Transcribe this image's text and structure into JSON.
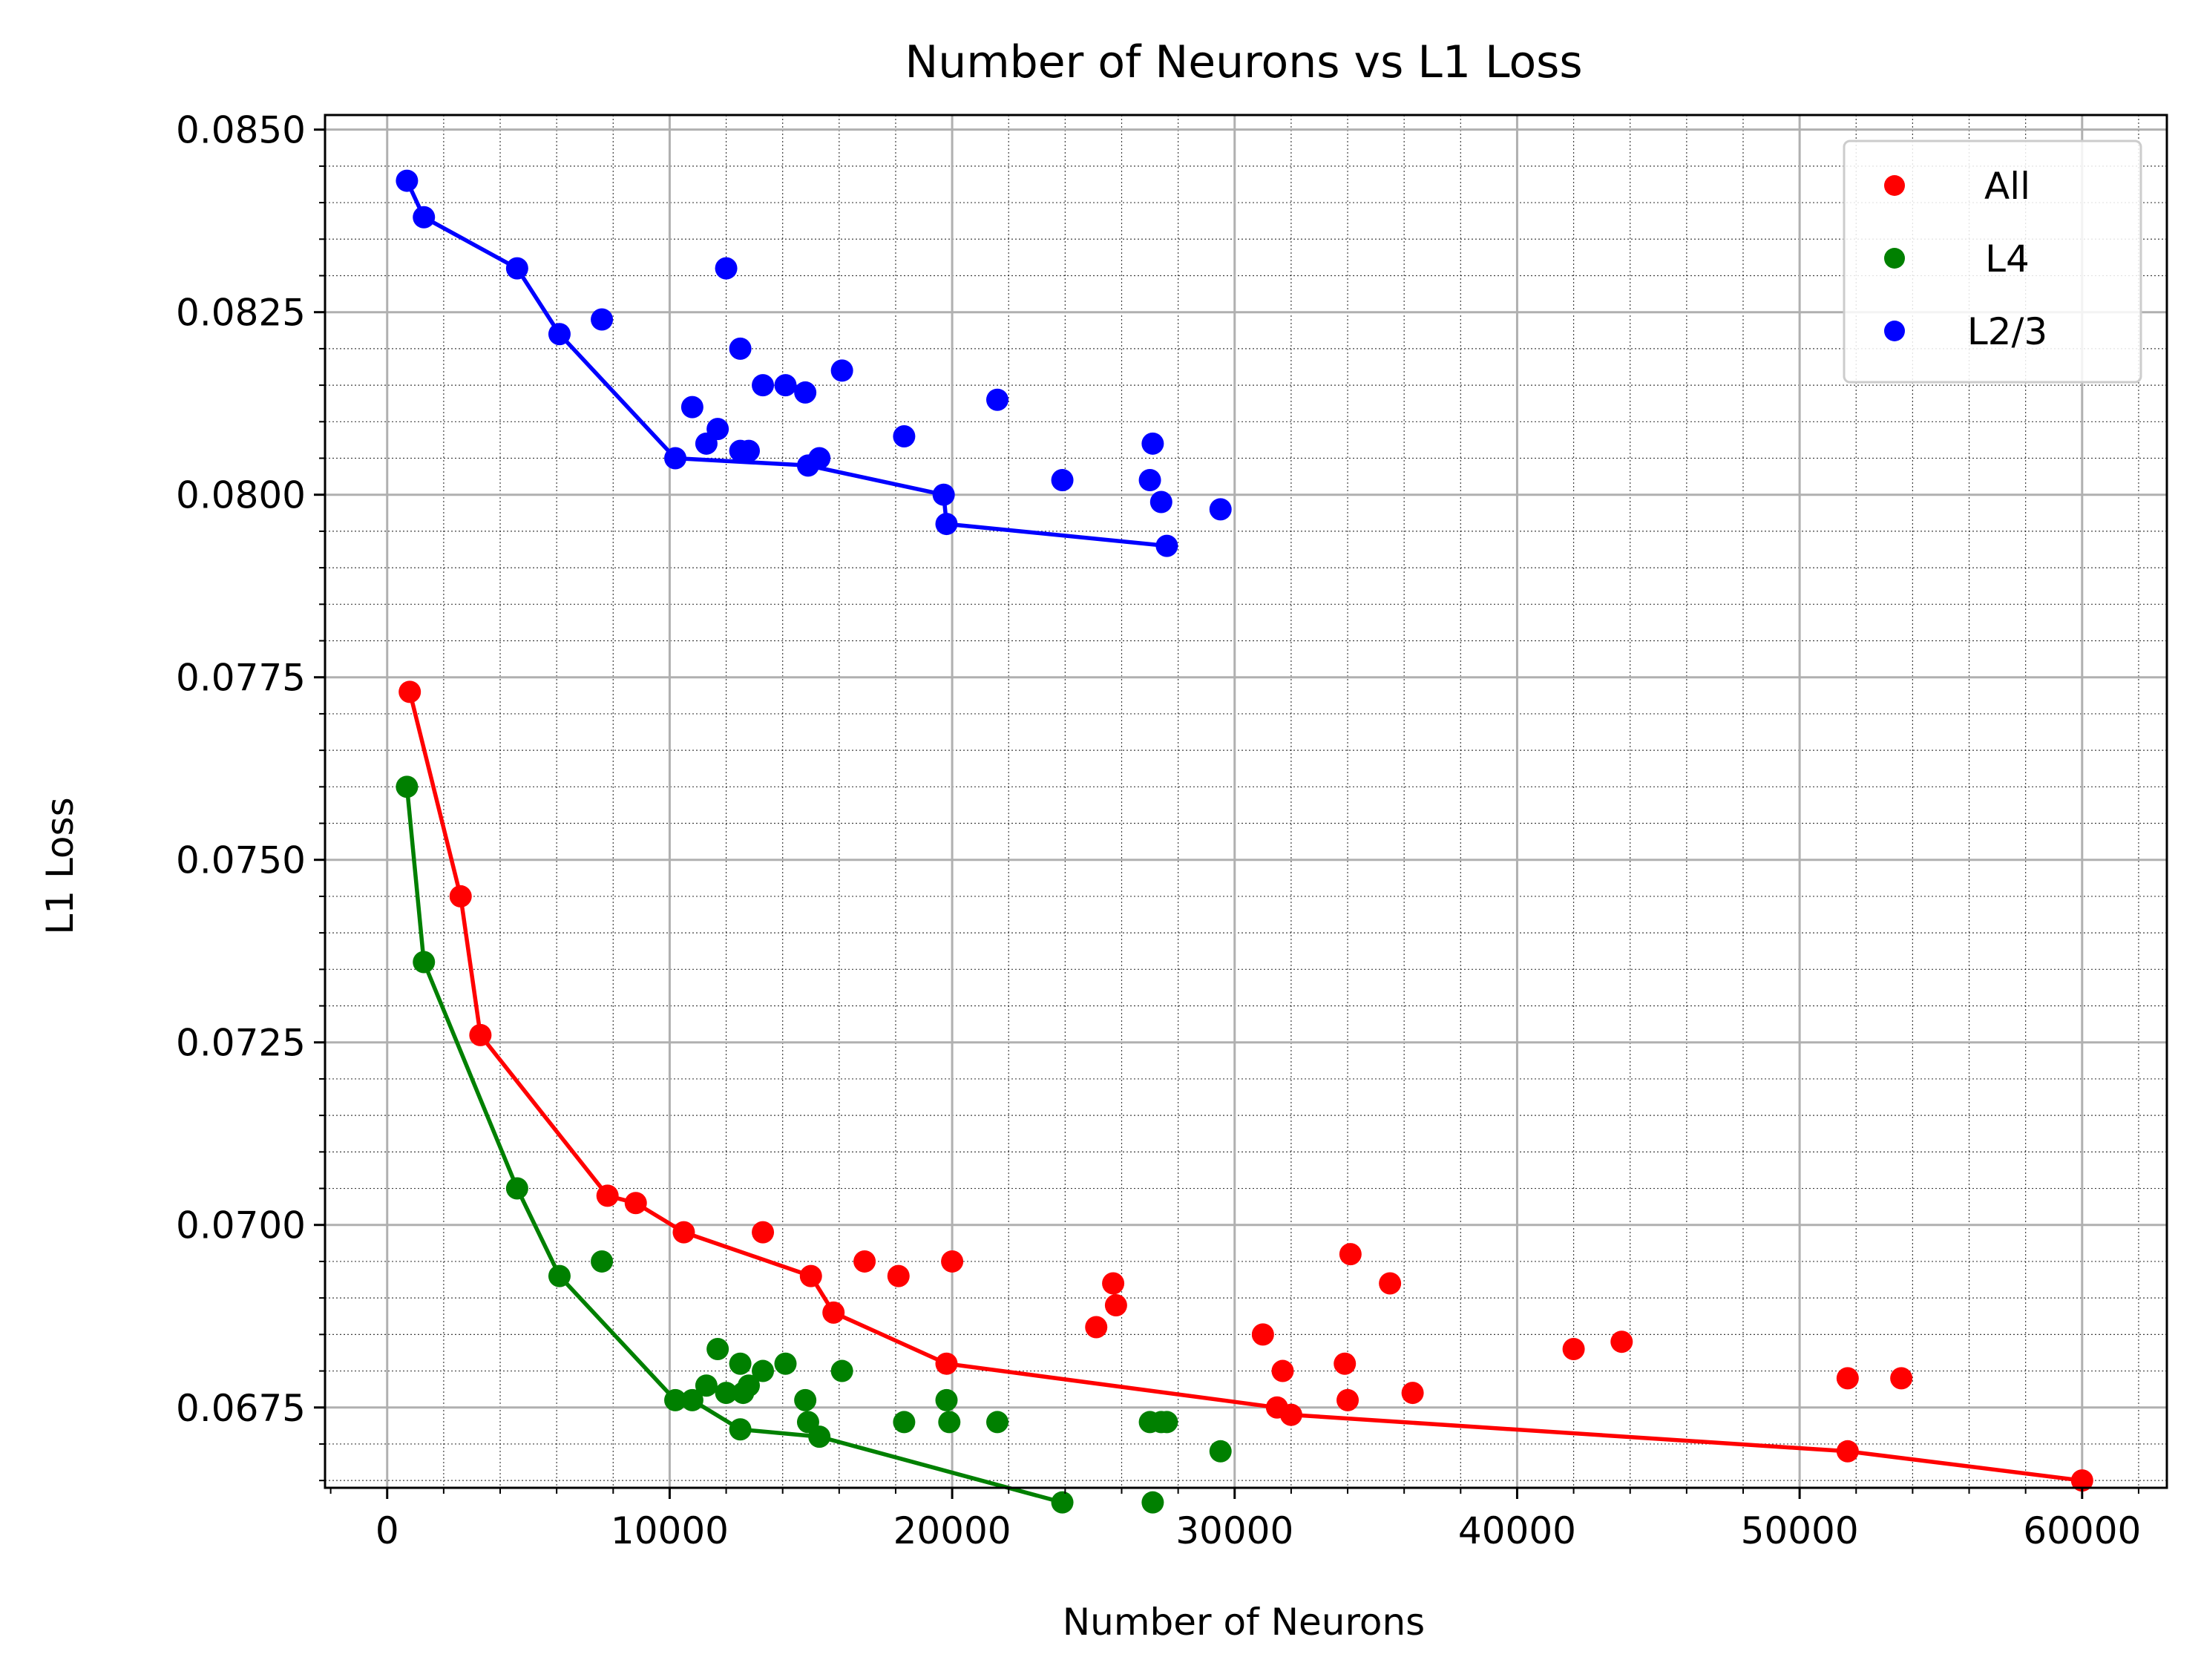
{
  "chart_data": {
    "type": "scatter",
    "title": "Number of Neurons vs L1 Loss",
    "xlabel": "Number of Neurons",
    "ylabel": "L1 Loss",
    "xlim": [
      -2200,
      63000
    ],
    "ylim": [
      0.0664,
      0.0852
    ],
    "xticks": [
      0,
      10000,
      20000,
      30000,
      40000,
      50000,
      60000
    ],
    "xtick_labels": [
      "0",
      "10000",
      "20000",
      "30000",
      "40000",
      "50000",
      "60000"
    ],
    "yticks": [
      0.0675,
      0.07,
      0.0725,
      0.075,
      0.0775,
      0.08,
      0.0825,
      0.085
    ],
    "ytick_labels": [
      "0.0675",
      "0.0700",
      "0.0725",
      "0.0750",
      "0.0775",
      "0.0800",
      "0.0825",
      "0.0850"
    ],
    "grid": true,
    "minor_grid": true,
    "legend_position": "top-right",
    "series": [
      {
        "name": "All",
        "color": "#ff0000",
        "points": [
          [
            800,
            0.0773
          ],
          [
            2600,
            0.0745
          ],
          [
            3300,
            0.0726
          ],
          [
            7800,
            0.0704
          ],
          [
            8800,
            0.0703
          ],
          [
            10500,
            0.0699
          ],
          [
            13300,
            0.0699
          ],
          [
            15000,
            0.0693
          ],
          [
            15800,
            0.0688
          ],
          [
            16900,
            0.0695
          ],
          [
            18100,
            0.0693
          ],
          [
            19800,
            0.0681
          ],
          [
            20000,
            0.0695
          ],
          [
            25100,
            0.0686
          ],
          [
            25700,
            0.0692
          ],
          [
            25800,
            0.0689
          ],
          [
            31000,
            0.0685
          ],
          [
            31500,
            0.0675
          ],
          [
            31700,
            0.068
          ],
          [
            32000,
            0.0674
          ],
          [
            33900,
            0.0681
          ],
          [
            34000,
            0.0676
          ],
          [
            34100,
            0.0696
          ],
          [
            35500,
            0.0692
          ],
          [
            36300,
            0.0677
          ],
          [
            42000,
            0.0683
          ],
          [
            43700,
            0.0684
          ],
          [
            51700,
            0.0679
          ],
          [
            51700,
            0.0669
          ],
          [
            53600,
            0.0679
          ],
          [
            60000,
            0.0665
          ]
        ],
        "frontier": [
          [
            800,
            0.0773
          ],
          [
            2600,
            0.0745
          ],
          [
            3300,
            0.0726
          ],
          [
            7800,
            0.0704
          ],
          [
            8800,
            0.0703
          ],
          [
            10500,
            0.0699
          ],
          [
            15000,
            0.0693
          ],
          [
            15800,
            0.0688
          ],
          [
            19800,
            0.0681
          ],
          [
            31500,
            0.0675
          ],
          [
            32000,
            0.0674
          ],
          [
            51700,
            0.0669
          ],
          [
            60000,
            0.0665
          ]
        ]
      },
      {
        "name": "L4",
        "color": "#008000",
        "points": [
          [
            700,
            0.076
          ],
          [
            1300,
            0.0736
          ],
          [
            4600,
            0.0705
          ],
          [
            6100,
            0.0693
          ],
          [
            7600,
            0.0695
          ],
          [
            10200,
            0.0676
          ],
          [
            10800,
            0.0676
          ],
          [
            11300,
            0.0678
          ],
          [
            11700,
            0.0683
          ],
          [
            12000,
            0.0677
          ],
          [
            12500,
            0.0681
          ],
          [
            12500,
            0.0672
          ],
          [
            12600,
            0.0677
          ],
          [
            12800,
            0.0678
          ],
          [
            13300,
            0.068
          ],
          [
            14100,
            0.0681
          ],
          [
            14800,
            0.0676
          ],
          [
            14900,
            0.0673
          ],
          [
            15300,
            0.0671
          ],
          [
            16100,
            0.068
          ],
          [
            18300,
            0.0673
          ],
          [
            19800,
            0.0676
          ],
          [
            19900,
            0.0673
          ],
          [
            21600,
            0.0673
          ],
          [
            23900,
            0.0662
          ],
          [
            27000,
            0.0673
          ],
          [
            27100,
            0.0662
          ],
          [
            27400,
            0.0673
          ],
          [
            27600,
            0.0673
          ],
          [
            29500,
            0.0669
          ]
        ],
        "frontier": [
          [
            700,
            0.076
          ],
          [
            1300,
            0.0736
          ],
          [
            4600,
            0.0705
          ],
          [
            6100,
            0.0693
          ],
          [
            10200,
            0.0676
          ],
          [
            10800,
            0.0676
          ],
          [
            12500,
            0.0672
          ],
          [
            15300,
            0.0671
          ],
          [
            23900,
            0.0662
          ]
        ]
      },
      {
        "name": "L2/3",
        "color": "#0000ff",
        "points": [
          [
            700,
            0.0843
          ],
          [
            1300,
            0.0838
          ],
          [
            4600,
            0.0831
          ],
          [
            6100,
            0.0822
          ],
          [
            7600,
            0.0824
          ],
          [
            10200,
            0.0805
          ],
          [
            10800,
            0.0812
          ],
          [
            11300,
            0.0807
          ],
          [
            11700,
            0.0809
          ],
          [
            12000,
            0.0831
          ],
          [
            12500,
            0.082
          ],
          [
            12500,
            0.0806
          ],
          [
            12800,
            0.0806
          ],
          [
            13300,
            0.0815
          ],
          [
            14100,
            0.0815
          ],
          [
            14800,
            0.0814
          ],
          [
            14900,
            0.0804
          ],
          [
            15300,
            0.0805
          ],
          [
            16100,
            0.0817
          ],
          [
            18300,
            0.0808
          ],
          [
            19700,
            0.08
          ],
          [
            19800,
            0.0796
          ],
          [
            21600,
            0.0813
          ],
          [
            23900,
            0.0802
          ],
          [
            27000,
            0.0802
          ],
          [
            27100,
            0.0807
          ],
          [
            27400,
            0.0799
          ],
          [
            27600,
            0.0793
          ],
          [
            29500,
            0.0798
          ]
        ],
        "frontier": [
          [
            700,
            0.0843
          ],
          [
            1300,
            0.0838
          ],
          [
            4600,
            0.0831
          ],
          [
            6100,
            0.0822
          ],
          [
            10200,
            0.0805
          ],
          [
            14900,
            0.0804
          ],
          [
            19700,
            0.08
          ],
          [
            19800,
            0.0796
          ],
          [
            27600,
            0.0793
          ]
        ]
      }
    ]
  }
}
